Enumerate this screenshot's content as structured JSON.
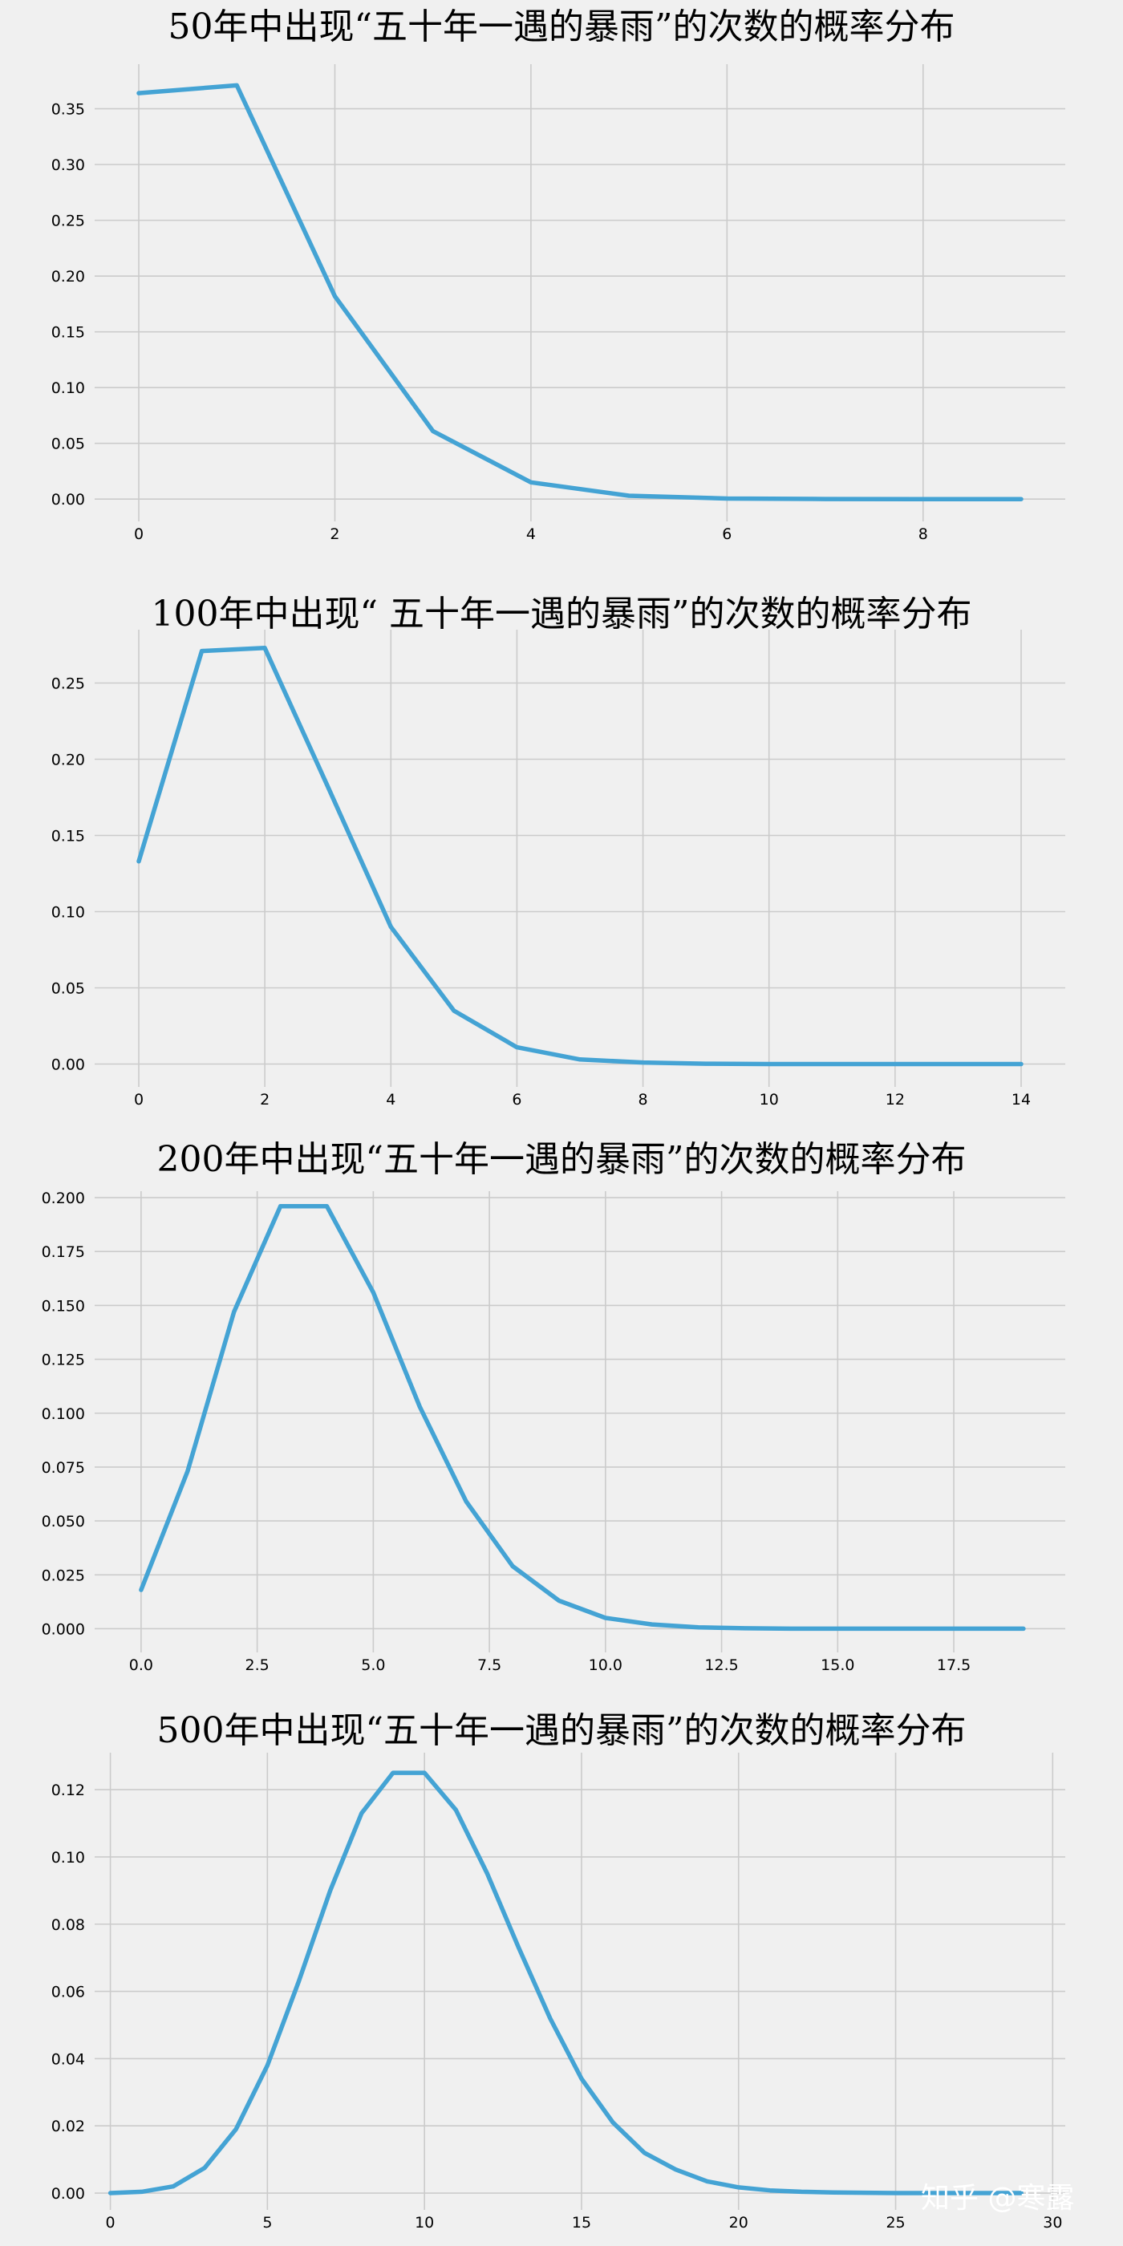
{
  "chart_data": [
    {
      "type": "line",
      "title": "50年中出现“五十年一遇的暴雨”的次数的概率分布",
      "xlabel": "",
      "ylabel": "",
      "x": [
        0,
        1,
        2,
        3,
        4,
        5,
        6,
        7,
        8,
        9
      ],
      "values": [
        0.364,
        0.371,
        0.182,
        0.061,
        0.015,
        0.003,
        0.0005,
        0.0001,
        0.0,
        0.0
      ],
      "xlim": [
        -0.45,
        9.45
      ],
      "ylim": [
        -0.02,
        0.39
      ],
      "xticks": [
        0,
        2,
        4,
        6,
        8
      ],
      "yticks": [
        0.0,
        0.05,
        0.1,
        0.15,
        0.2,
        0.25,
        0.3,
        0.35
      ],
      "ytick_labels": [
        "0.00",
        "0.05",
        "0.10",
        "0.15",
        "0.20",
        "0.25",
        "0.30",
        "0.35"
      ],
      "grid": true
    },
    {
      "type": "line",
      "title": "100年中出现“ 五十年一遇的暴雨”的次数的概率分布",
      "xlabel": "",
      "ylabel": "",
      "x": [
        0,
        1,
        2,
        3,
        4,
        5,
        6,
        7,
        8,
        9,
        10,
        11,
        12,
        13,
        14
      ],
      "values": [
        0.133,
        0.271,
        0.273,
        0.182,
        0.09,
        0.035,
        0.011,
        0.003,
        0.001,
        0.0002,
        0.0,
        0.0,
        0.0,
        0.0,
        0.0
      ],
      "xlim": [
        -0.7,
        14.7
      ],
      "ylim": [
        -0.015,
        0.285
      ],
      "xticks": [
        0,
        2,
        4,
        6,
        8,
        10,
        12,
        14
      ],
      "yticks": [
        0.0,
        0.05,
        0.1,
        0.15,
        0.2,
        0.25
      ],
      "ytick_labels": [
        "0.00",
        "0.05",
        "0.10",
        "0.15",
        "0.20",
        "0.25"
      ],
      "grid": true
    },
    {
      "type": "line",
      "title": "200年中出现“五十年一遇的暴雨”的次数的概率分布",
      "xlabel": "",
      "ylabel": "",
      "x": [
        0,
        1,
        2,
        3,
        4,
        5,
        6,
        7,
        8,
        9,
        10,
        11,
        12,
        13,
        14,
        15,
        16,
        17,
        18,
        19
      ],
      "values": [
        0.018,
        0.073,
        0.147,
        0.196,
        0.196,
        0.156,
        0.103,
        0.059,
        0.029,
        0.013,
        0.005,
        0.002,
        0.0006,
        0.0002,
        0.0,
        0.0,
        0.0,
        0.0,
        0.0,
        0.0
      ],
      "xlim": [
        -1.0,
        19.9
      ],
      "ylim": [
        -0.011,
        0.203
      ],
      "xticks": [
        0,
        2.5,
        5,
        7.5,
        10,
        12.5,
        15,
        17.5
      ],
      "xtick_labels": [
        "0.0",
        "2.5",
        "5.0",
        "7.5",
        "10.0",
        "12.5",
        "15.0",
        "17.5"
      ],
      "yticks": [
        0.0,
        0.025,
        0.05,
        0.075,
        0.1,
        0.125,
        0.15,
        0.175,
        0.2
      ],
      "ytick_labels": [
        "0.000",
        "0.025",
        "0.050",
        "0.075",
        "0.100",
        "0.125",
        "0.150",
        "0.175",
        "0.200"
      ],
      "grid": true
    },
    {
      "type": "line",
      "title": "500年中出现“五十年一遇的暴雨”的次数的概率分布",
      "xlabel": "",
      "ylabel": "",
      "x": [
        0,
        1,
        2,
        3,
        4,
        5,
        6,
        7,
        8,
        9,
        10,
        11,
        12,
        13,
        14,
        15,
        16,
        17,
        18,
        19,
        20,
        21,
        22,
        23,
        24,
        25,
        26,
        27,
        28,
        29
      ],
      "values": [
        0.0,
        0.0004,
        0.002,
        0.0075,
        0.019,
        0.038,
        0.063,
        0.09,
        0.113,
        0.125,
        0.125,
        0.114,
        0.095,
        0.073,
        0.052,
        0.034,
        0.021,
        0.012,
        0.007,
        0.0035,
        0.0017,
        0.0008,
        0.0004,
        0.0002,
        0.0001,
        0.0,
        0.0,
        0.0,
        0.0,
        0.0
      ],
      "xlim": [
        -0.5,
        30.4
      ],
      "ylim": [
        -0.005,
        0.131
      ],
      "xticks": [
        0,
        5,
        10,
        15,
        20,
        25,
        30
      ],
      "yticks": [
        0.0,
        0.02,
        0.04,
        0.06,
        0.08,
        0.1,
        0.12
      ],
      "ytick_labels": [
        "0.00",
        "0.02",
        "0.04",
        "0.06",
        "0.08",
        "0.10",
        "0.12"
      ],
      "grid": true
    }
  ],
  "watermark": "知乎 @寒露",
  "colors": {
    "background": "#f0f0f0",
    "line": "#44a3d4",
    "grid": "#cbcbcb"
  }
}
